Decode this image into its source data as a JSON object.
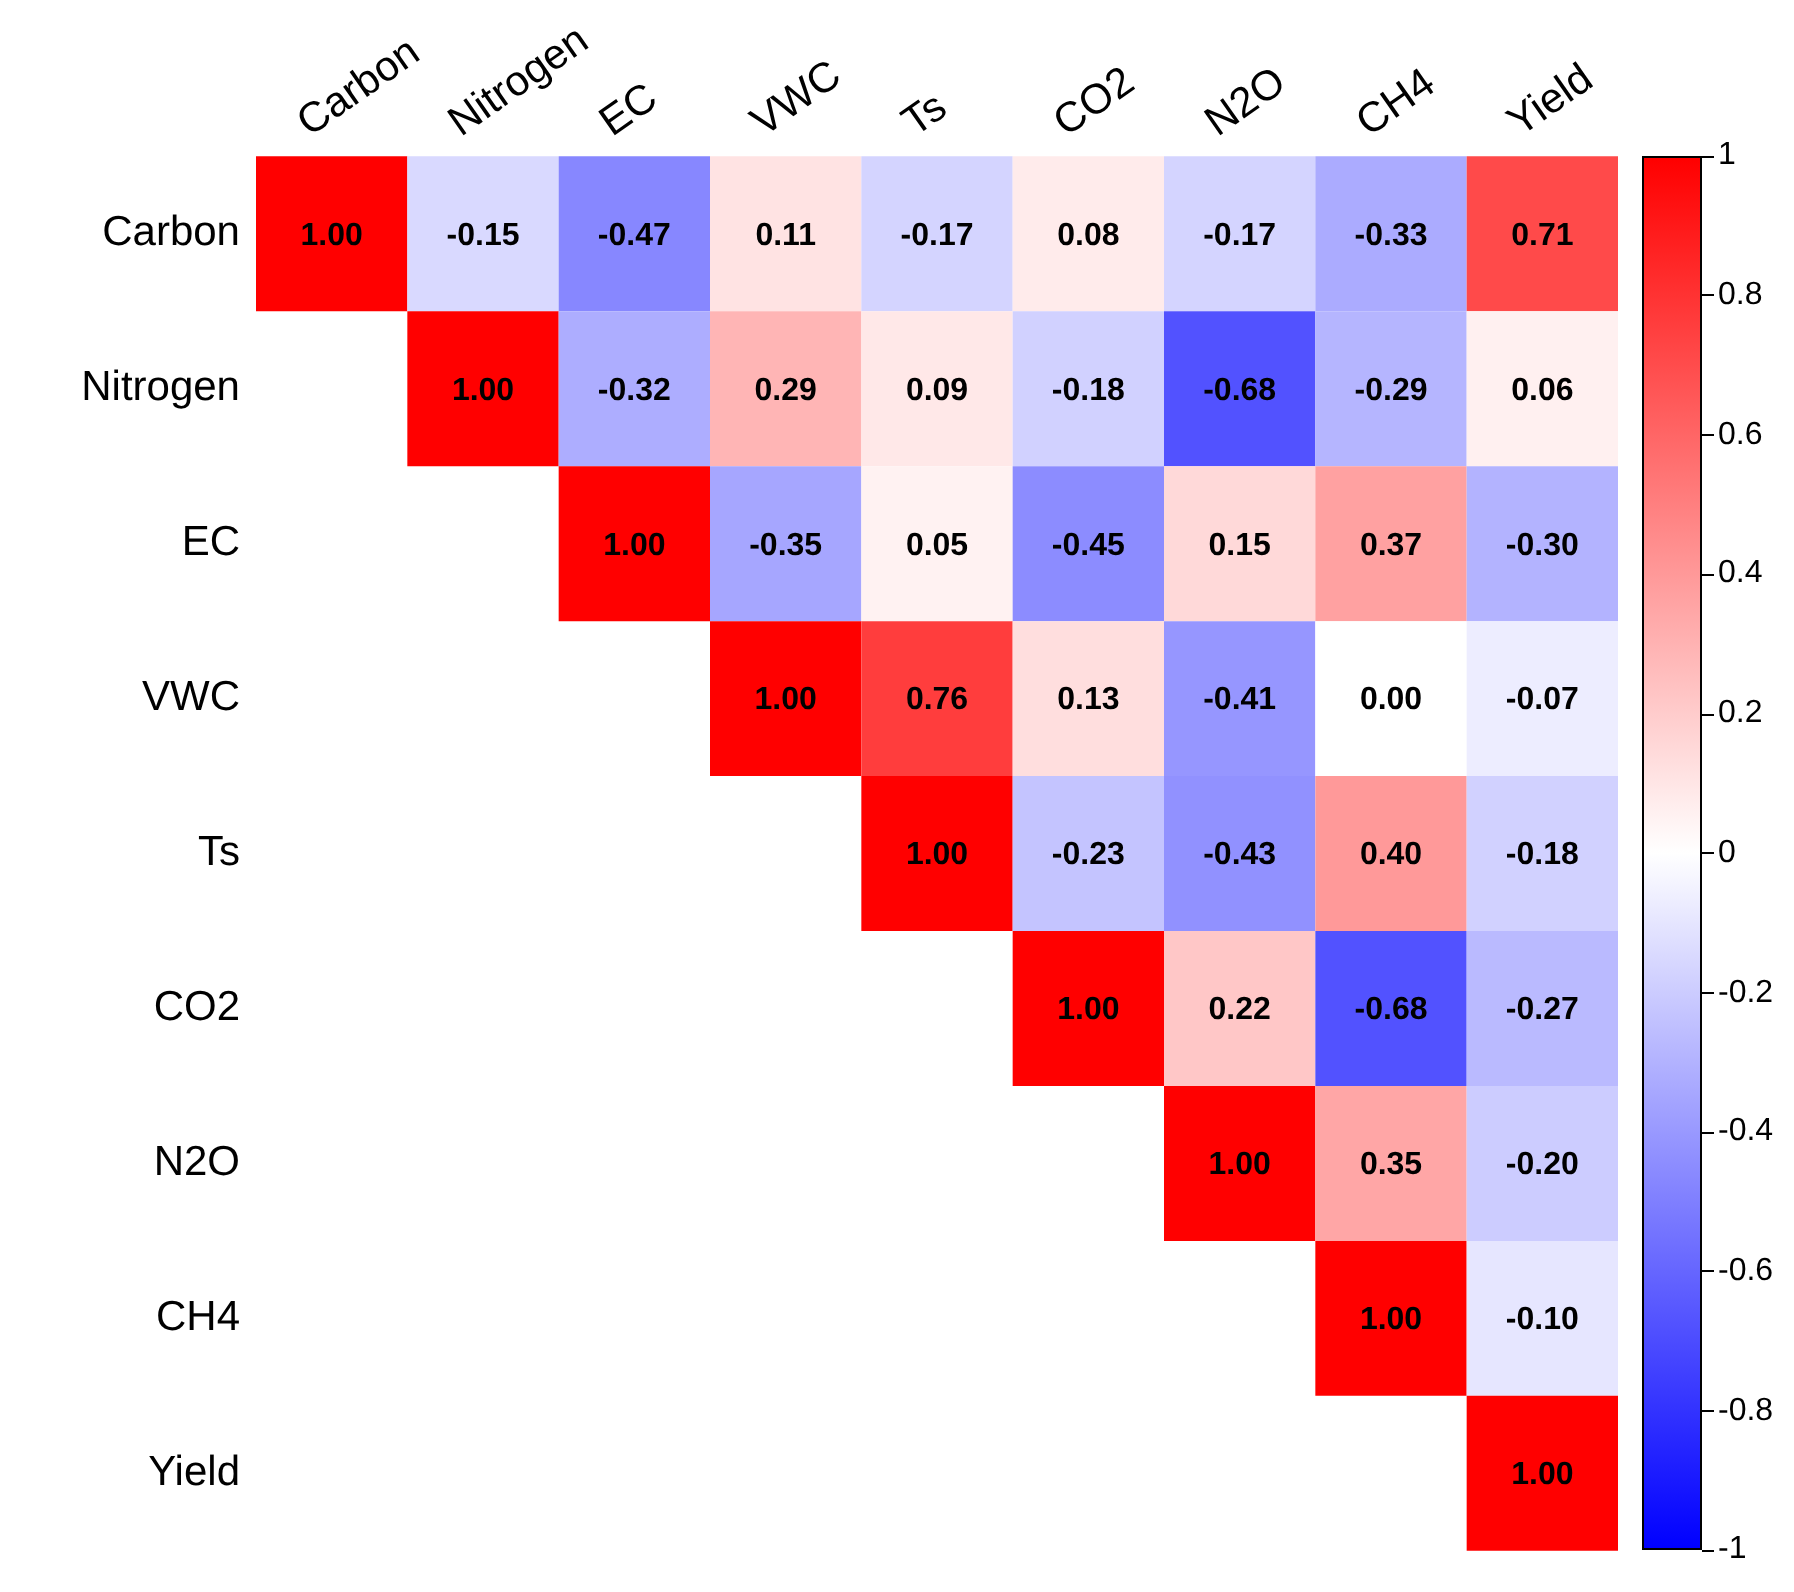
{
  "chart_data": {
    "type": "heatmap",
    "categories": [
      "Carbon",
      "Nitrogen",
      "EC",
      "VWC",
      "Ts",
      "CO2",
      "N2O",
      "CH4",
      "Yield"
    ],
    "y_categories": [
      "Carbon",
      "Nitrogen",
      "EC",
      "VWC",
      "Ts",
      "CO2",
      "N2O",
      "CH4",
      "Yield"
    ],
    "cells": [
      [
        1.0,
        -0.15,
        -0.47,
        0.11,
        -0.17,
        0.08,
        -0.17,
        -0.33,
        0.71
      ],
      [
        null,
        1.0,
        -0.32,
        0.29,
        0.09,
        -0.18,
        -0.68,
        -0.29,
        0.06
      ],
      [
        null,
        null,
        1.0,
        -0.35,
        0.05,
        -0.45,
        0.15,
        0.37,
        -0.3
      ],
      [
        null,
        null,
        null,
        1.0,
        0.76,
        0.13,
        -0.41,
        0.0,
        -0.07
      ],
      [
        null,
        null,
        null,
        null,
        1.0,
        -0.23,
        -0.43,
        0.4,
        -0.18
      ],
      [
        null,
        null,
        null,
        null,
        null,
        1.0,
        0.22,
        -0.68,
        -0.27
      ],
      [
        null,
        null,
        null,
        null,
        null,
        null,
        1.0,
        0.35,
        -0.2
      ],
      [
        null,
        null,
        null,
        null,
        null,
        null,
        null,
        1.0,
        -0.1
      ],
      [
        null,
        null,
        null,
        null,
        null,
        null,
        null,
        null,
        1.0
      ]
    ],
    "cell_labels": [
      [
        "1.00",
        "-0.15",
        "-0.47",
        "0.11",
        "-0.17",
        "0.08",
        "-0.17",
        "-0.33",
        "0.71"
      ],
      [
        null,
        "1.00",
        "-0.32",
        "0.29",
        "0.09",
        "-0.18",
        "-0.68",
        "-0.29",
        "0.06"
      ],
      [
        null,
        null,
        "1.00",
        "-0.35",
        "0.05",
        "-0.45",
        "0.15",
        "0.37",
        "-0.30"
      ],
      [
        null,
        null,
        null,
        "1.00",
        "0.76",
        "0.13",
        "-0.41",
        "0.00",
        "-0.07"
      ],
      [
        null,
        null,
        null,
        null,
        "1.00",
        "-0.23",
        "-0.43",
        "0.40",
        "-0.18"
      ],
      [
        null,
        null,
        null,
        null,
        null,
        "1.00",
        "0.22",
        "-0.68",
        "-0.27"
      ],
      [
        null,
        null,
        null,
        null,
        null,
        null,
        "1.00",
        "0.35",
        "-0.20"
      ],
      [
        null,
        null,
        null,
        null,
        null,
        null,
        null,
        "1.00",
        "-0.10"
      ],
      [
        null,
        null,
        null,
        null,
        null,
        null,
        null,
        null,
        "1.00"
      ]
    ],
    "clim": [
      -1,
      1
    ],
    "cticks": [
      {
        "value": -1,
        "label": "-1"
      },
      {
        "value": -0.8,
        "label": "-0.8"
      },
      {
        "value": -0.6,
        "label": "-0.6"
      },
      {
        "value": -0.4,
        "label": "-0.4"
      },
      {
        "value": -0.2,
        "label": "-0.2"
      },
      {
        "value": 0,
        "label": "0"
      },
      {
        "value": 0.2,
        "label": "0.2"
      },
      {
        "value": 0.4,
        "label": "0.4"
      },
      {
        "value": 0.6,
        "label": "0.6"
      },
      {
        "value": 0.8,
        "label": "0.8"
      },
      {
        "value": 1,
        "label": "1"
      }
    ]
  }
}
